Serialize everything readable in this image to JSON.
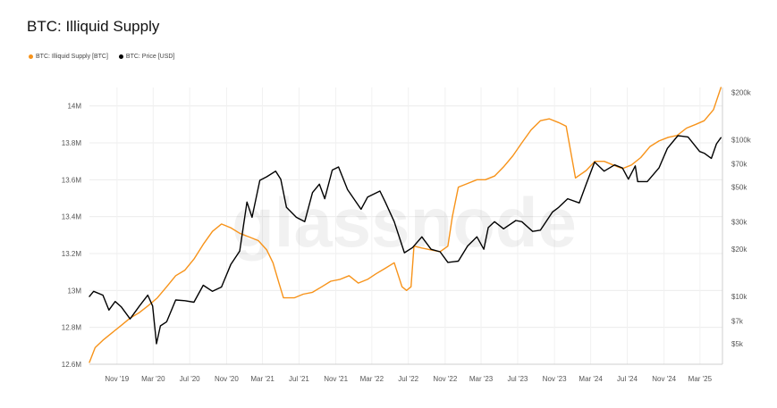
{
  "title": "BTC: Illiquid Supply",
  "watermark": "glassnode",
  "chart_data": {
    "type": "line",
    "left_axis": {
      "ylim": [
        12.6,
        14.1
      ],
      "ticks": [
        12.6,
        12.8,
        13.0,
        13.2,
        13.4,
        13.6,
        13.8,
        14.0
      ],
      "tick_labels": [
        "12.6M",
        "12.8M",
        "13M",
        "13.2M",
        "13.4M",
        "13.6M",
        "13.8M",
        "14M"
      ]
    },
    "right_axis": {
      "scale": "log",
      "ylim": [
        3700,
        215000
      ],
      "ticks": [
        5000,
        7000,
        10000,
        20000,
        30000,
        50000,
        70000,
        100000,
        200000
      ],
      "tick_labels": [
        "$5k",
        "$7k",
        "$10k",
        "$20k",
        "$30k",
        "$50k",
        "$70k",
        "$100k",
        "$200k"
      ]
    },
    "x_axis": {
      "xlim": [
        "2019-08-01",
        "2025-05-15"
      ],
      "ticks": [
        "2019-11-01",
        "2020-03-01",
        "2020-07-01",
        "2020-11-01",
        "2021-03-01",
        "2021-07-01",
        "2021-11-01",
        "2022-03-01",
        "2022-07-01",
        "2022-11-01",
        "2023-03-01",
        "2023-07-01",
        "2023-11-01",
        "2024-03-01",
        "2024-07-01",
        "2024-11-01",
        "2025-03-01"
      ],
      "tick_labels": [
        "Nov '19",
        "Mar '20",
        "Jul '20",
        "Nov '20",
        "Mar '21",
        "Jul '21",
        "Nov '21",
        "Mar '22",
        "Jul '22",
        "Nov '22",
        "Mar '23",
        "Jul '23",
        "Nov '23",
        "Mar '24",
        "Jul '24",
        "Nov '24",
        "Mar '25"
      ]
    },
    "grid": true,
    "legend_position": "top-left",
    "series": [
      {
        "name": "BTC: Illiquid Supply [BTC]",
        "axis": "left",
        "unit": "BTC millions",
        "color": "#f7931a",
        "points": [
          [
            "2019-08-01",
            12.61
          ],
          [
            "2019-08-20",
            12.69
          ],
          [
            "2019-09-15",
            12.73
          ],
          [
            "2019-10-15",
            12.77
          ],
          [
            "2019-11-15",
            12.81
          ],
          [
            "2019-12-15",
            12.85
          ],
          [
            "2020-01-15",
            12.88
          ],
          [
            "2020-02-15",
            12.92
          ],
          [
            "2020-03-15",
            12.96
          ],
          [
            "2020-04-15",
            13.02
          ],
          [
            "2020-05-15",
            13.08
          ],
          [
            "2020-06-15",
            13.11
          ],
          [
            "2020-07-15",
            13.17
          ],
          [
            "2020-08-15",
            13.25
          ],
          [
            "2020-09-15",
            13.32
          ],
          [
            "2020-10-15",
            13.36
          ],
          [
            "2020-11-15",
            13.34
          ],
          [
            "2020-12-15",
            13.31
          ],
          [
            "2021-01-15",
            13.29
          ],
          [
            "2021-02-15",
            13.27
          ],
          [
            "2021-03-15",
            13.22
          ],
          [
            "2021-04-05",
            13.15
          ],
          [
            "2021-04-25",
            13.04
          ],
          [
            "2021-05-10",
            12.96
          ],
          [
            "2021-06-15",
            12.96
          ],
          [
            "2021-07-15",
            12.98
          ],
          [
            "2021-08-15",
            12.99
          ],
          [
            "2021-09-15",
            13.02
          ],
          [
            "2021-10-15",
            13.05
          ],
          [
            "2021-11-15",
            13.06
          ],
          [
            "2021-12-15",
            13.08
          ],
          [
            "2022-01-15",
            13.04
          ],
          [
            "2022-02-15",
            13.06
          ],
          [
            "2022-03-15",
            13.09
          ],
          [
            "2022-04-15",
            13.12
          ],
          [
            "2022-05-15",
            13.15
          ],
          [
            "2022-06-10",
            13.02
          ],
          [
            "2022-06-25",
            13.0
          ],
          [
            "2022-07-10",
            13.02
          ],
          [
            "2022-07-20",
            13.24
          ],
          [
            "2022-08-15",
            13.23
          ],
          [
            "2022-09-15",
            13.22
          ],
          [
            "2022-10-15",
            13.21
          ],
          [
            "2022-11-10",
            13.24
          ],
          [
            "2022-11-25",
            13.4
          ],
          [
            "2022-12-15",
            13.56
          ],
          [
            "2023-01-15",
            13.58
          ],
          [
            "2023-02-15",
            13.6
          ],
          [
            "2023-03-15",
            13.6
          ],
          [
            "2023-04-15",
            13.62
          ],
          [
            "2023-05-15",
            13.67
          ],
          [
            "2023-06-15",
            13.73
          ],
          [
            "2023-07-15",
            13.8
          ],
          [
            "2023-08-15",
            13.87
          ],
          [
            "2023-09-15",
            13.92
          ],
          [
            "2023-10-15",
            13.93
          ],
          [
            "2023-11-15",
            13.91
          ],
          [
            "2023-12-10",
            13.89
          ],
          [
            "2024-01-10",
            13.61
          ],
          [
            "2024-02-15",
            13.65
          ],
          [
            "2024-03-15",
            13.7
          ],
          [
            "2024-04-15",
            13.7
          ],
          [
            "2024-05-15",
            13.68
          ],
          [
            "2024-06-15",
            13.66
          ],
          [
            "2024-07-15",
            13.68
          ],
          [
            "2024-08-15",
            13.72
          ],
          [
            "2024-09-15",
            13.78
          ],
          [
            "2024-10-15",
            13.81
          ],
          [
            "2024-11-15",
            13.83
          ],
          [
            "2024-12-15",
            13.84
          ],
          [
            "2025-01-15",
            13.88
          ],
          [
            "2025-02-15",
            13.9
          ],
          [
            "2025-03-15",
            13.92
          ],
          [
            "2025-04-15",
            13.98
          ],
          [
            "2025-05-10",
            14.1
          ]
        ]
      },
      {
        "name": "BTC: Price [USD]",
        "axis": "right",
        "unit": "USD",
        "color": "#000000",
        "points": [
          [
            "2019-08-01",
            10000
          ],
          [
            "2019-08-15",
            10800
          ],
          [
            "2019-09-15",
            10200
          ],
          [
            "2019-10-05",
            8200
          ],
          [
            "2019-10-26",
            9300
          ],
          [
            "2019-11-15",
            8600
          ],
          [
            "2019-12-15",
            7200
          ],
          [
            "2020-01-15",
            8700
          ],
          [
            "2020-02-12",
            10200
          ],
          [
            "2020-02-28",
            8700
          ],
          [
            "2020-03-12",
            5000
          ],
          [
            "2020-03-25",
            6500
          ],
          [
            "2020-04-15",
            6900
          ],
          [
            "2020-05-15",
            9500
          ],
          [
            "2020-06-15",
            9400
          ],
          [
            "2020-07-15",
            9200
          ],
          [
            "2020-08-15",
            11800
          ],
          [
            "2020-09-15",
            10800
          ],
          [
            "2020-10-15",
            11500
          ],
          [
            "2020-11-15",
            16000
          ],
          [
            "2020-12-15",
            19500
          ],
          [
            "2021-01-08",
            40000
          ],
          [
            "2021-01-25",
            32000
          ],
          [
            "2021-02-20",
            55000
          ],
          [
            "2021-03-15",
            58000
          ],
          [
            "2021-04-14",
            63000
          ],
          [
            "2021-05-01",
            56000
          ],
          [
            "2021-05-20",
            37000
          ],
          [
            "2021-06-22",
            32000
          ],
          [
            "2021-07-20",
            30000
          ],
          [
            "2021-08-15",
            46000
          ],
          [
            "2021-09-07",
            52000
          ],
          [
            "2021-09-25",
            42000
          ],
          [
            "2021-10-20",
            64000
          ],
          [
            "2021-11-10",
            67000
          ],
          [
            "2021-12-10",
            48000
          ],
          [
            "2022-01-24",
            36000
          ],
          [
            "2022-02-15",
            43000
          ],
          [
            "2022-03-28",
            47000
          ],
          [
            "2022-04-15",
            40000
          ],
          [
            "2022-05-15",
            30000
          ],
          [
            "2022-06-18",
            19000
          ],
          [
            "2022-07-15",
            20500
          ],
          [
            "2022-08-15",
            24000
          ],
          [
            "2022-09-15",
            20000
          ],
          [
            "2022-10-15",
            19300
          ],
          [
            "2022-11-10",
            16500
          ],
          [
            "2022-12-15",
            16800
          ],
          [
            "2023-01-15",
            21000
          ],
          [
            "2023-02-15",
            24000
          ],
          [
            "2023-03-10",
            20000
          ],
          [
            "2023-03-25",
            27500
          ],
          [
            "2023-04-15",
            30000
          ],
          [
            "2023-05-15",
            27000
          ],
          [
            "2023-06-25",
            30500
          ],
          [
            "2023-07-15",
            30000
          ],
          [
            "2023-08-20",
            26000
          ],
          [
            "2023-09-15",
            26500
          ],
          [
            "2023-10-25",
            34500
          ],
          [
            "2023-11-15",
            37000
          ],
          [
            "2023-12-15",
            42000
          ],
          [
            "2024-01-23",
            39500
          ],
          [
            "2024-02-15",
            52000
          ],
          [
            "2024-03-14",
            72000
          ],
          [
            "2024-04-15",
            63000
          ],
          [
            "2024-05-20",
            69000
          ],
          [
            "2024-06-15",
            66000
          ],
          [
            "2024-07-05",
            56000
          ],
          [
            "2024-07-28",
            68000
          ],
          [
            "2024-08-05",
            54000
          ],
          [
            "2024-09-06",
            54000
          ],
          [
            "2024-10-15",
            66000
          ],
          [
            "2024-11-12",
            88000
          ],
          [
            "2024-12-17",
            106000
          ],
          [
            "2025-01-20",
            104000
          ],
          [
            "2025-02-28",
            84000
          ],
          [
            "2025-03-15",
            82000
          ],
          [
            "2025-04-08",
            76000
          ],
          [
            "2025-04-25",
            94000
          ],
          [
            "2025-05-10",
            103000
          ]
        ]
      }
    ]
  }
}
